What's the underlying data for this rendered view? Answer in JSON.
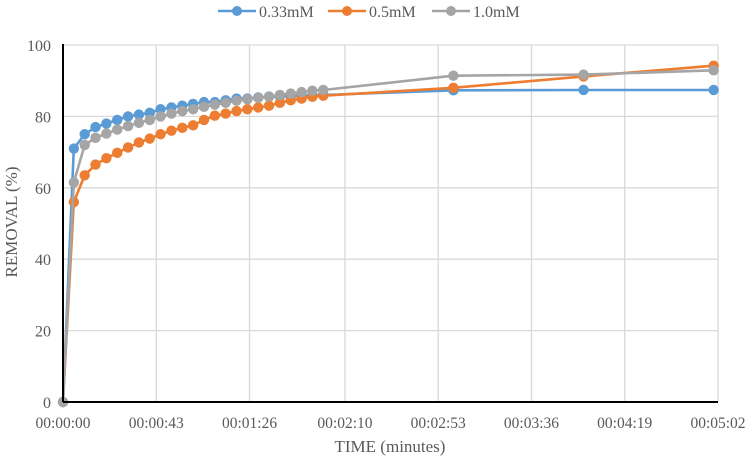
{
  "chart_data": {
    "type": "line",
    "title": "",
    "xlabel": "TIME (minutes)",
    "ylabel": "REMOVAL (%)",
    "ylim": [
      0,
      100
    ],
    "xlim_seconds": [
      0,
      302
    ],
    "grid": true,
    "legend_position": "top",
    "y_ticks": [
      0,
      20,
      40,
      60,
      80,
      100
    ],
    "x_tick_labels": [
      "00:00:00",
      "00:00:43",
      "00:01:26",
      "00:02:10",
      "00:02:53",
      "00:03:36",
      "00:04:19",
      "00:05:02"
    ],
    "x_tick_seconds": [
      0,
      43,
      86,
      130,
      173,
      216,
      259,
      302
    ],
    "x_seconds": [
      0,
      5,
      10,
      15,
      20,
      25,
      30,
      35,
      40,
      45,
      50,
      55,
      60,
      65,
      70,
      75,
      80,
      85,
      90,
      95,
      100,
      105,
      110,
      115,
      120,
      180,
      240,
      300
    ],
    "series": [
      {
        "name": "0.33mM",
        "color": "#5B9BD5",
        "values": [
          0,
          71,
          75,
          77,
          78,
          79,
          80,
          80.5,
          81,
          82,
          82.5,
          83,
          83.5,
          84,
          84,
          84.5,
          85,
          85,
          85.3,
          85.5,
          85.6,
          85.7,
          85.8,
          85.9,
          86,
          87.3,
          87.4,
          87.4
        ]
      },
      {
        "name": "0.5mM",
        "color": "#ED7D31",
        "values": [
          0,
          56,
          63.5,
          66.5,
          68.3,
          69.8,
          71.3,
          72.7,
          73.8,
          75,
          76,
          76.8,
          77.5,
          79,
          80.2,
          80.8,
          81.5,
          82,
          82.5,
          83,
          83.8,
          84.5,
          85,
          85.5,
          85.8,
          88,
          91.2,
          94.2
        ]
      },
      {
        "name": "1.0mM",
        "color": "#A5A5A5",
        "values": [
          0,
          61.5,
          72,
          74,
          75.2,
          76.3,
          77.3,
          78.2,
          79,
          80,
          80.8,
          81.5,
          82,
          82.7,
          83.3,
          83.8,
          84.4,
          84.8,
          85.2,
          85.6,
          86,
          86.4,
          86.8,
          87.2,
          87.4,
          91.4,
          91.7,
          92.9
        ]
      }
    ]
  }
}
